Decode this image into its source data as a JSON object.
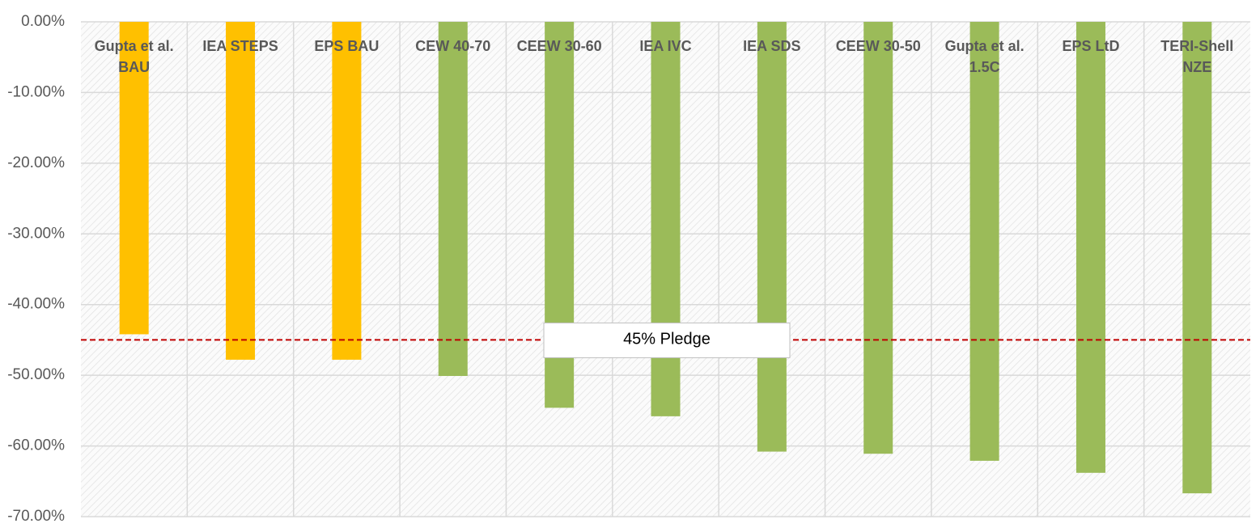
{
  "chart_data": {
    "type": "bar",
    "categories": [
      "Gupta et al. BAU",
      "IEA STEPS",
      "EPS BAU",
      "CEW 40-70",
      "CEEW 30-60",
      "IEA IVC",
      "IEA SDS",
      "CEEW 30-50",
      "Gupta et al. 1.5C",
      "EPS LtD",
      "TERI-Shell NZE"
    ],
    "values": [
      -44.2,
      -47.8,
      -47.8,
      -50.1,
      -54.6,
      -55.8,
      -60.8,
      -61.1,
      -62.1,
      -63.8,
      -66.7
    ],
    "colors": [
      "#ffc000",
      "#ffc000",
      "#ffc000",
      "#9bbb59",
      "#9bbb59",
      "#9bbb59",
      "#9bbb59",
      "#9bbb59",
      "#9bbb59",
      "#9bbb59",
      "#9bbb59"
    ],
    "ylim": [
      -70,
      0
    ],
    "yticks": [
      {
        "value": 0,
        "label": "0.00%"
      },
      {
        "value": -10,
        "label": "-10.00%"
      },
      {
        "value": -20,
        "label": "-20.00%"
      },
      {
        "value": -30,
        "label": "-30.00%"
      },
      {
        "value": -40,
        "label": "-40.00%"
      },
      {
        "value": -50,
        "label": "-50.00%"
      },
      {
        "value": -60,
        "label": "-60.00%"
      },
      {
        "value": -70,
        "label": "-70.00%"
      }
    ],
    "grid": true,
    "reference_line": {
      "value": -45,
      "label": "45% Pledge",
      "color": "#c00000"
    }
  }
}
